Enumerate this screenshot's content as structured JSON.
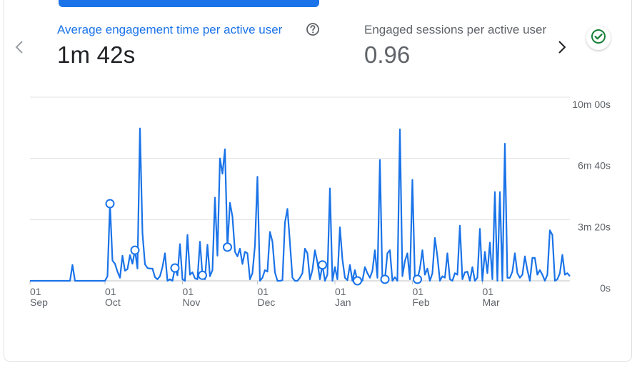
{
  "tabs": [
    {
      "title": "Average engagement time per active user",
      "value": "1m 42s",
      "active": true
    },
    {
      "title": "Engaged sessions per active user",
      "value": "0.96",
      "active": false
    }
  ],
  "icons": {
    "prev": "chevron-left-icon",
    "next": "chevron-right-icon",
    "help": "help-circle-icon",
    "status": "check-circle-icon"
  },
  "colors": {
    "accent": "#1a73e8",
    "status": "#188038",
    "grid": "#e0e0e0",
    "text_secondary": "#5f6368"
  },
  "chart_data": {
    "type": "line",
    "title": "",
    "xlabel": "",
    "ylabel": "",
    "ylim": [
      0,
      600
    ],
    "y_ticks": [
      {
        "value": 0,
        "label": "0s"
      },
      {
        "value": 200,
        "label": "3m 20s"
      },
      {
        "value": 400,
        "label": "6m 40s"
      },
      {
        "value": 600,
        "label": "10m 00s"
      }
    ],
    "x_ticks": [
      {
        "day": 0,
        "day_label": "01",
        "month_label": "Sep"
      },
      {
        "day": 30,
        "day_label": "01",
        "month_label": "Oct"
      },
      {
        "day": 61,
        "day_label": "01",
        "month_label": "Nov"
      },
      {
        "day": 91,
        "day_label": "01",
        "month_label": "Dec"
      },
      {
        "day": 122,
        "day_label": "01",
        "month_label": "Jan"
      },
      {
        "day": 153,
        "day_label": "01",
        "month_label": "Feb"
      },
      {
        "day": 181,
        "day_label": "01",
        "month_label": "Mar"
      }
    ],
    "series": [
      {
        "values": [
          0,
          0,
          0,
          0,
          0,
          0,
          0,
          0,
          0,
          0,
          0,
          0,
          0,
          0,
          0,
          0,
          0,
          52,
          0,
          0,
          0,
          0,
          0,
          0,
          0,
          0,
          0,
          0,
          0,
          0,
          0,
          15,
          252,
          66,
          56,
          30,
          10,
          82,
          33,
          38,
          84,
          56,
          100,
          40,
          498,
          156,
          54,
          42,
          40,
          40,
          12,
          5,
          15,
          45,
          90,
          0,
          5,
          0,
          42,
          18,
          120,
          5,
          0,
          150,
          20,
          28,
          8,
          5,
          128,
          18,
          5,
          118,
          15,
          35,
          272,
          82,
          400,
          350,
          430,
          110,
          255,
          210,
          95,
          80,
          105,
          55,
          95,
          90,
          5,
          25,
          115,
          340,
          0,
          10,
          35,
          30,
          160,
          128,
          28,
          0,
          0,
          2,
          190,
          235,
          125,
          10,
          0,
          0,
          10,
          25,
          105,
          90,
          5,
          35,
          100,
          60,
          5,
          52,
          0,
          20,
          302,
          0,
          45,
          5,
          175,
          70,
          10,
          2,
          52,
          0,
          35,
          0,
          8,
          0,
          45,
          25,
          10,
          33,
          100,
          10,
          395,
          0,
          5,
          90,
          100,
          0,
          12,
          0,
          495,
          15,
          65,
          90,
          5,
          330,
          5,
          5,
          40,
          100,
          20,
          40,
          0,
          25,
          140,
          80,
          0,
          15,
          10,
          90,
          5,
          0,
          25,
          20,
          180,
          5,
          28,
          30,
          0,
          45,
          0,
          10,
          170,
          0,
          95,
          25,
          125,
          5,
          290,
          0,
          290,
          0,
          448,
          10,
          10,
          30,
          90,
          25,
          10,
          20,
          80,
          35,
          0,
          75,
          75,
          20,
          35,
          20,
          0,
          20,
          165,
          150,
          0,
          5,
          25,
          85,
          20,
          25,
          15
        ],
        "markers": [
          32,
          42,
          58,
          69,
          79,
          117,
          131,
          142,
          155
        ]
      }
    ]
  }
}
